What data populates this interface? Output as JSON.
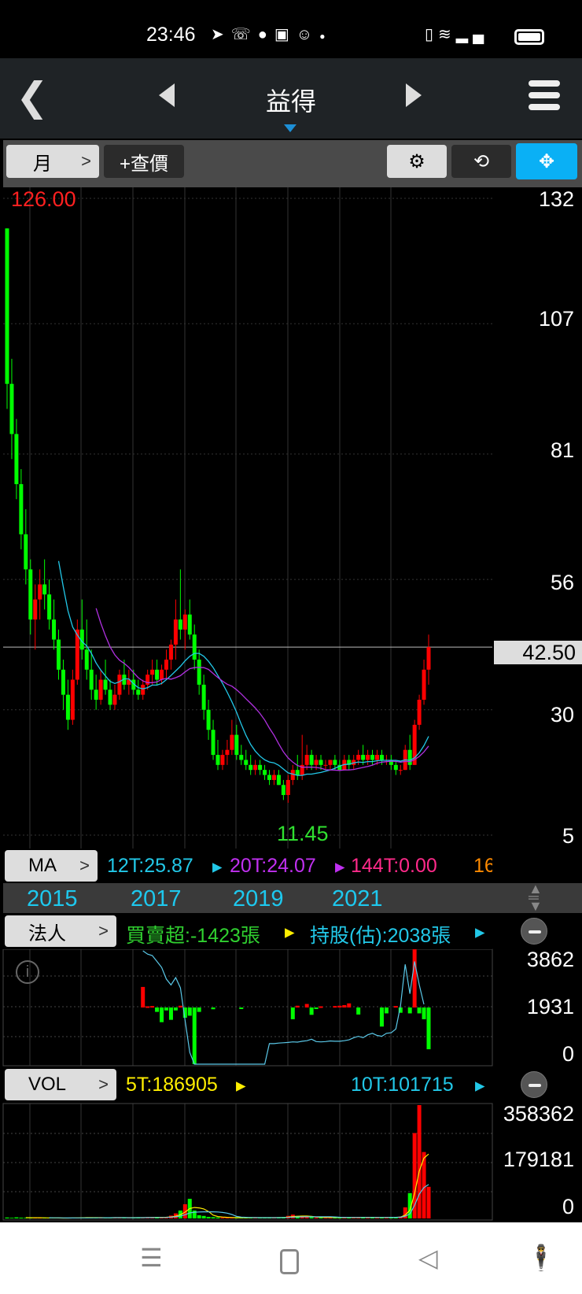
{
  "status_bar": {
    "time": "23:46",
    "icons": [
      "telegram-icon",
      "missed-call-icon",
      "line-icon",
      "u-app-icon",
      "gomaji-icon",
      "dot-icon",
      "vibrate-icon",
      "wifi-icon",
      "signal-icon",
      "battery-icon"
    ]
  },
  "header": {
    "title": "益得",
    "back_icon": "chevron-left-icon",
    "prev_icon": "triangle-left-icon",
    "next_icon": "triangle-right-icon",
    "menu_icon": "hamburger-icon"
  },
  "toolbar": {
    "period_label": "月",
    "add_quote_label": "+查價",
    "settings_icon": "gear-icon",
    "rotate_icon": "rotate-icon",
    "collapse_icon": "collapse-icon",
    "accent": "#0ab0f5"
  },
  "main_chart": {
    "high_label": "126.00",
    "low_label": "11.45",
    "current_price": "42.50",
    "y_ticks": [
      "132",
      "107",
      "81",
      "56",
      "30",
      "5"
    ],
    "colors": {
      "up": "#ff0000",
      "down": "#00ff00",
      "ma12": "#22c8e8",
      "ma20": "#b030e0"
    }
  },
  "ma_row": {
    "button": "MA",
    "ma12": "12T:25.87",
    "ma20": "20T:24.07",
    "ma144": "144T:0.00",
    "more": "16"
  },
  "x_axis": {
    "years": [
      "2015",
      "2017",
      "2019",
      "2021"
    ]
  },
  "inst_row": {
    "button": "法人",
    "net": "買賣超:-1423張",
    "holding": "持股(估):2038張",
    "y_ticks": [
      "3862",
      "1931",
      "0"
    ]
  },
  "vol_row": {
    "button": "VOL",
    "ma5": "5T:186905",
    "ma10": "10T:101715",
    "y_ticks": [
      "358362",
      "179181",
      "0"
    ]
  },
  "chart_data": [
    {
      "type": "candlestick",
      "title": "",
      "y_range": [
        5,
        132
      ],
      "ohlc": [
        [
          126,
          126,
          90,
          95
        ],
        [
          95,
          100,
          80,
          85
        ],
        [
          85,
          88,
          72,
          75
        ],
        [
          75,
          78,
          62,
          65
        ],
        [
          65,
          70,
          55,
          58
        ],
        [
          58,
          60,
          45,
          48
        ],
        [
          48,
          55,
          42,
          52
        ],
        [
          52,
          58,
          48,
          55
        ],
        [
          55,
          60,
          50,
          53
        ],
        [
          53,
          56,
          46,
          48
        ],
        [
          48,
          52,
          42,
          44
        ],
        [
          44,
          46,
          36,
          38
        ],
        [
          38,
          40,
          30,
          33
        ],
        [
          33,
          36,
          26,
          28
        ],
        [
          28,
          38,
          27,
          36
        ],
        [
          36,
          48,
          35,
          46
        ],
        [
          46,
          52,
          40,
          42
        ],
        [
          42,
          48,
          36,
          38
        ],
        [
          38,
          42,
          32,
          34
        ],
        [
          34,
          37,
          30,
          32
        ],
        [
          32,
          38,
          31,
          36
        ],
        [
          36,
          40,
          33,
          34
        ],
        [
          34,
          36,
          30,
          31
        ],
        [
          31,
          35,
          30,
          33
        ],
        [
          33,
          38,
          32,
          37
        ],
        [
          37,
          40,
          34,
          35
        ],
        [
          35,
          38,
          33,
          36
        ],
        [
          36,
          38,
          33,
          34
        ],
        [
          34,
          36,
          32,
          33
        ],
        [
          33,
          36,
          32,
          35
        ],
        [
          35,
          38,
          34,
          37
        ],
        [
          37,
          40,
          35,
          38
        ],
        [
          38,
          40,
          35,
          36
        ],
        [
          36,
          39,
          35,
          38
        ],
        [
          38,
          42,
          36,
          40
        ],
        [
          40,
          44,
          38,
          43
        ],
        [
          43,
          52,
          40,
          48
        ],
        [
          48,
          58,
          44,
          46
        ],
        [
          46,
          50,
          42,
          49
        ],
        [
          49,
          52,
          44,
          45
        ],
        [
          45,
          47,
          38,
          40
        ],
        [
          40,
          42,
          33,
          35
        ],
        [
          35,
          37,
          28,
          30
        ],
        [
          30,
          32,
          24,
          26
        ],
        [
          26,
          28,
          20,
          21
        ],
        [
          21,
          24,
          18,
          19
        ],
        [
          19,
          22,
          18,
          21
        ],
        [
          21,
          24,
          19,
          22
        ],
        [
          22,
          28,
          21,
          25
        ],
        [
          25,
          27,
          20,
          21
        ],
        [
          21,
          23,
          19,
          20
        ],
        [
          20,
          22,
          18,
          19
        ],
        [
          19,
          21,
          17,
          18
        ],
        [
          18,
          20,
          17,
          19
        ],
        [
          19,
          20,
          17,
          18
        ],
        [
          18,
          19,
          16,
          17
        ],
        [
          17,
          18,
          15,
          16
        ],
        [
          16,
          18,
          15,
          17
        ],
        [
          17,
          18,
          15,
          15
        ],
        [
          15,
          16,
          12,
          13
        ],
        [
          13,
          17,
          11.45,
          16
        ],
        [
          16,
          19,
          15,
          18
        ],
        [
          18,
          21,
          16,
          17
        ],
        [
          17,
          25,
          16,
          19
        ],
        [
          19,
          23,
          18,
          21
        ],
        [
          21,
          22,
          18,
          19
        ],
        [
          19,
          21,
          18,
          20
        ],
        [
          20,
          21,
          18,
          19
        ],
        [
          19,
          20,
          18,
          19
        ],
        [
          19,
          20,
          18,
          20
        ],
        [
          20,
          21,
          18,
          19
        ],
        [
          19,
          20,
          18,
          18
        ],
        [
          18,
          21,
          18,
          20
        ],
        [
          20,
          21,
          18,
          19
        ],
        [
          19,
          21,
          18,
          20
        ],
        [
          20,
          22,
          19,
          21
        ],
        [
          21,
          23,
          19,
          20
        ],
        [
          20,
          22,
          19,
          21
        ],
        [
          21,
          22,
          19,
          20
        ],
        [
          20,
          22,
          19,
          21
        ],
        [
          21,
          22,
          19,
          20
        ],
        [
          20,
          21,
          19,
          20
        ],
        [
          20,
          21,
          18,
          19
        ],
        [
          19,
          20,
          17,
          18
        ],
        [
          18,
          19,
          17,
          18
        ],
        [
          18,
          23,
          18,
          22
        ],
        [
          22,
          25,
          18,
          19
        ],
        [
          19,
          28,
          19,
          27
        ],
        [
          27,
          33,
          26,
          32
        ],
        [
          32,
          40,
          31,
          38
        ],
        [
          38,
          45,
          35,
          42.5
        ]
      ]
    },
    {
      "type": "bar+line",
      "name": "法人",
      "y_range": [
        0,
        3862
      ],
      "net_range": [
        -1931,
        1931
      ],
      "net": {
        "29": 700,
        "30": 40,
        "31": 50,
        "32": -150,
        "33": -500,
        "34": -100,
        "35": -420,
        "36": -100,
        "37": 60,
        "38": -350,
        "39": -280,
        "40": -1931,
        "41": -150,
        "44": -60,
        "50": -50,
        "61": -400,
        "62": 60,
        "64": 120,
        "65": -250,
        "66": -50,
        "67": 40,
        "70": 50,
        "71": 60,
        "72": 80,
        "73": 140,
        "75": -240,
        "80": -650,
        "81": -200,
        "83": 50,
        "84": -180,
        "86": -200,
        "87": 2450,
        "88": -200,
        "89": -400,
        "90": -1423
      },
      "holding": [
        null,
        null,
        null,
        null,
        null,
        null,
        null,
        null,
        null,
        null,
        null,
        null,
        null,
        null,
        null,
        null,
        null,
        null,
        null,
        null,
        null,
        null,
        null,
        null,
        null,
        null,
        null,
        null,
        null,
        3862,
        3750,
        3700,
        3500,
        3300,
        2900,
        2700,
        2950,
        2600,
        1500,
        400,
        0,
        0,
        0,
        0,
        0,
        0,
        0,
        0,
        0,
        0,
        0,
        0,
        0,
        0,
        0,
        0,
        700,
        700,
        720,
        730,
        740,
        760,
        750,
        780,
        800,
        850,
        770,
        760,
        770,
        790,
        780,
        780,
        800,
        830,
        900,
        950,
        900,
        1000,
        1050,
        980,
        950,
        1050,
        1070,
        1200,
        2000,
        3400,
        2400,
        3500,
        2700,
        2038,
        null
      ]
    },
    {
      "type": "bar",
      "name": "VOL",
      "y_range": [
        0,
        358362
      ],
      "values": [
        3000,
        2000,
        3500,
        2500,
        2000,
        1500,
        2000,
        3000,
        1500,
        1000,
        1500,
        1000,
        1000,
        1500,
        2000,
        2500,
        3000,
        3000,
        2000,
        2000,
        2500,
        2000,
        2500,
        3000,
        2500,
        2000,
        2000,
        2500,
        3000,
        3500,
        4000,
        3500,
        3000,
        3500,
        5000,
        9000,
        16000,
        25000,
        45000,
        62000,
        25000,
        10000,
        8000,
        5000,
        4000,
        3000,
        3000,
        2500,
        2500,
        2000,
        2000,
        2500,
        3000,
        2500,
        2000,
        2500,
        3000,
        2500,
        3500,
        4000,
        8000,
        12000,
        7000,
        6000,
        4000,
        3500,
        3000,
        2500,
        3000,
        3500,
        3000,
        2500,
        3000,
        3500,
        4000,
        3500,
        3000,
        3000,
        3500,
        3000,
        3000,
        3500,
        4000,
        4500,
        6000,
        35000,
        80000,
        270000,
        358362,
        210000,
        100000
      ]
    }
  ]
}
